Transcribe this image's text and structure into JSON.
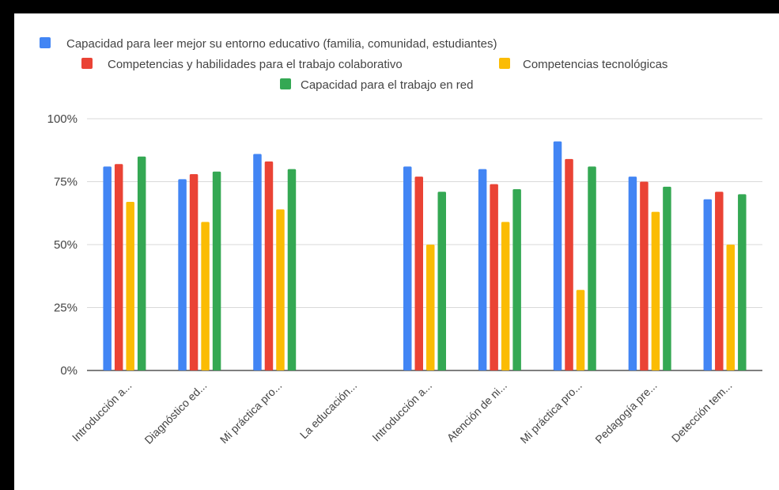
{
  "chart_data": {
    "type": "bar",
    "title": "",
    "xlabel": "",
    "ylabel": "",
    "ylim": [
      0,
      100
    ],
    "y_ticks": [
      "0%",
      "25%",
      "50%",
      "75%",
      "100%"
    ],
    "y_tick_values": [
      0,
      25,
      50,
      75,
      100
    ],
    "grid": true,
    "legend_position": "top",
    "categories": [
      "Introducción a...",
      "Diagnóstico ed...",
      "Mi práctica pro...",
      "La educación...",
      "Introducción a...",
      "Atención de ni...",
      "Mi práctica pro...",
      "Pedagogía pre...",
      "Detección tem..."
    ],
    "series": [
      {
        "name": "Capacidad para leer mejor su entorno educativo (familia, comunidad, estudiantes)",
        "color": "#4285f4",
        "values": [
          81,
          76,
          86,
          null,
          81,
          80,
          91,
          77,
          68
        ]
      },
      {
        "name": "Competencias y habilidades para el trabajo colaborativo",
        "color": "#ea4335",
        "values": [
          82,
          78,
          83,
          null,
          77,
          74,
          84,
          75,
          71
        ]
      },
      {
        "name": "Competencias tecnológicas",
        "color": "#fbbc04",
        "values": [
          67,
          59,
          64,
          null,
          50,
          59,
          32,
          63,
          50
        ]
      },
      {
        "name": "Capacidad para el trabajo en red",
        "color": "#34a853",
        "values": [
          85,
          79,
          80,
          null,
          71,
          72,
          81,
          73,
          70
        ]
      }
    ]
  }
}
